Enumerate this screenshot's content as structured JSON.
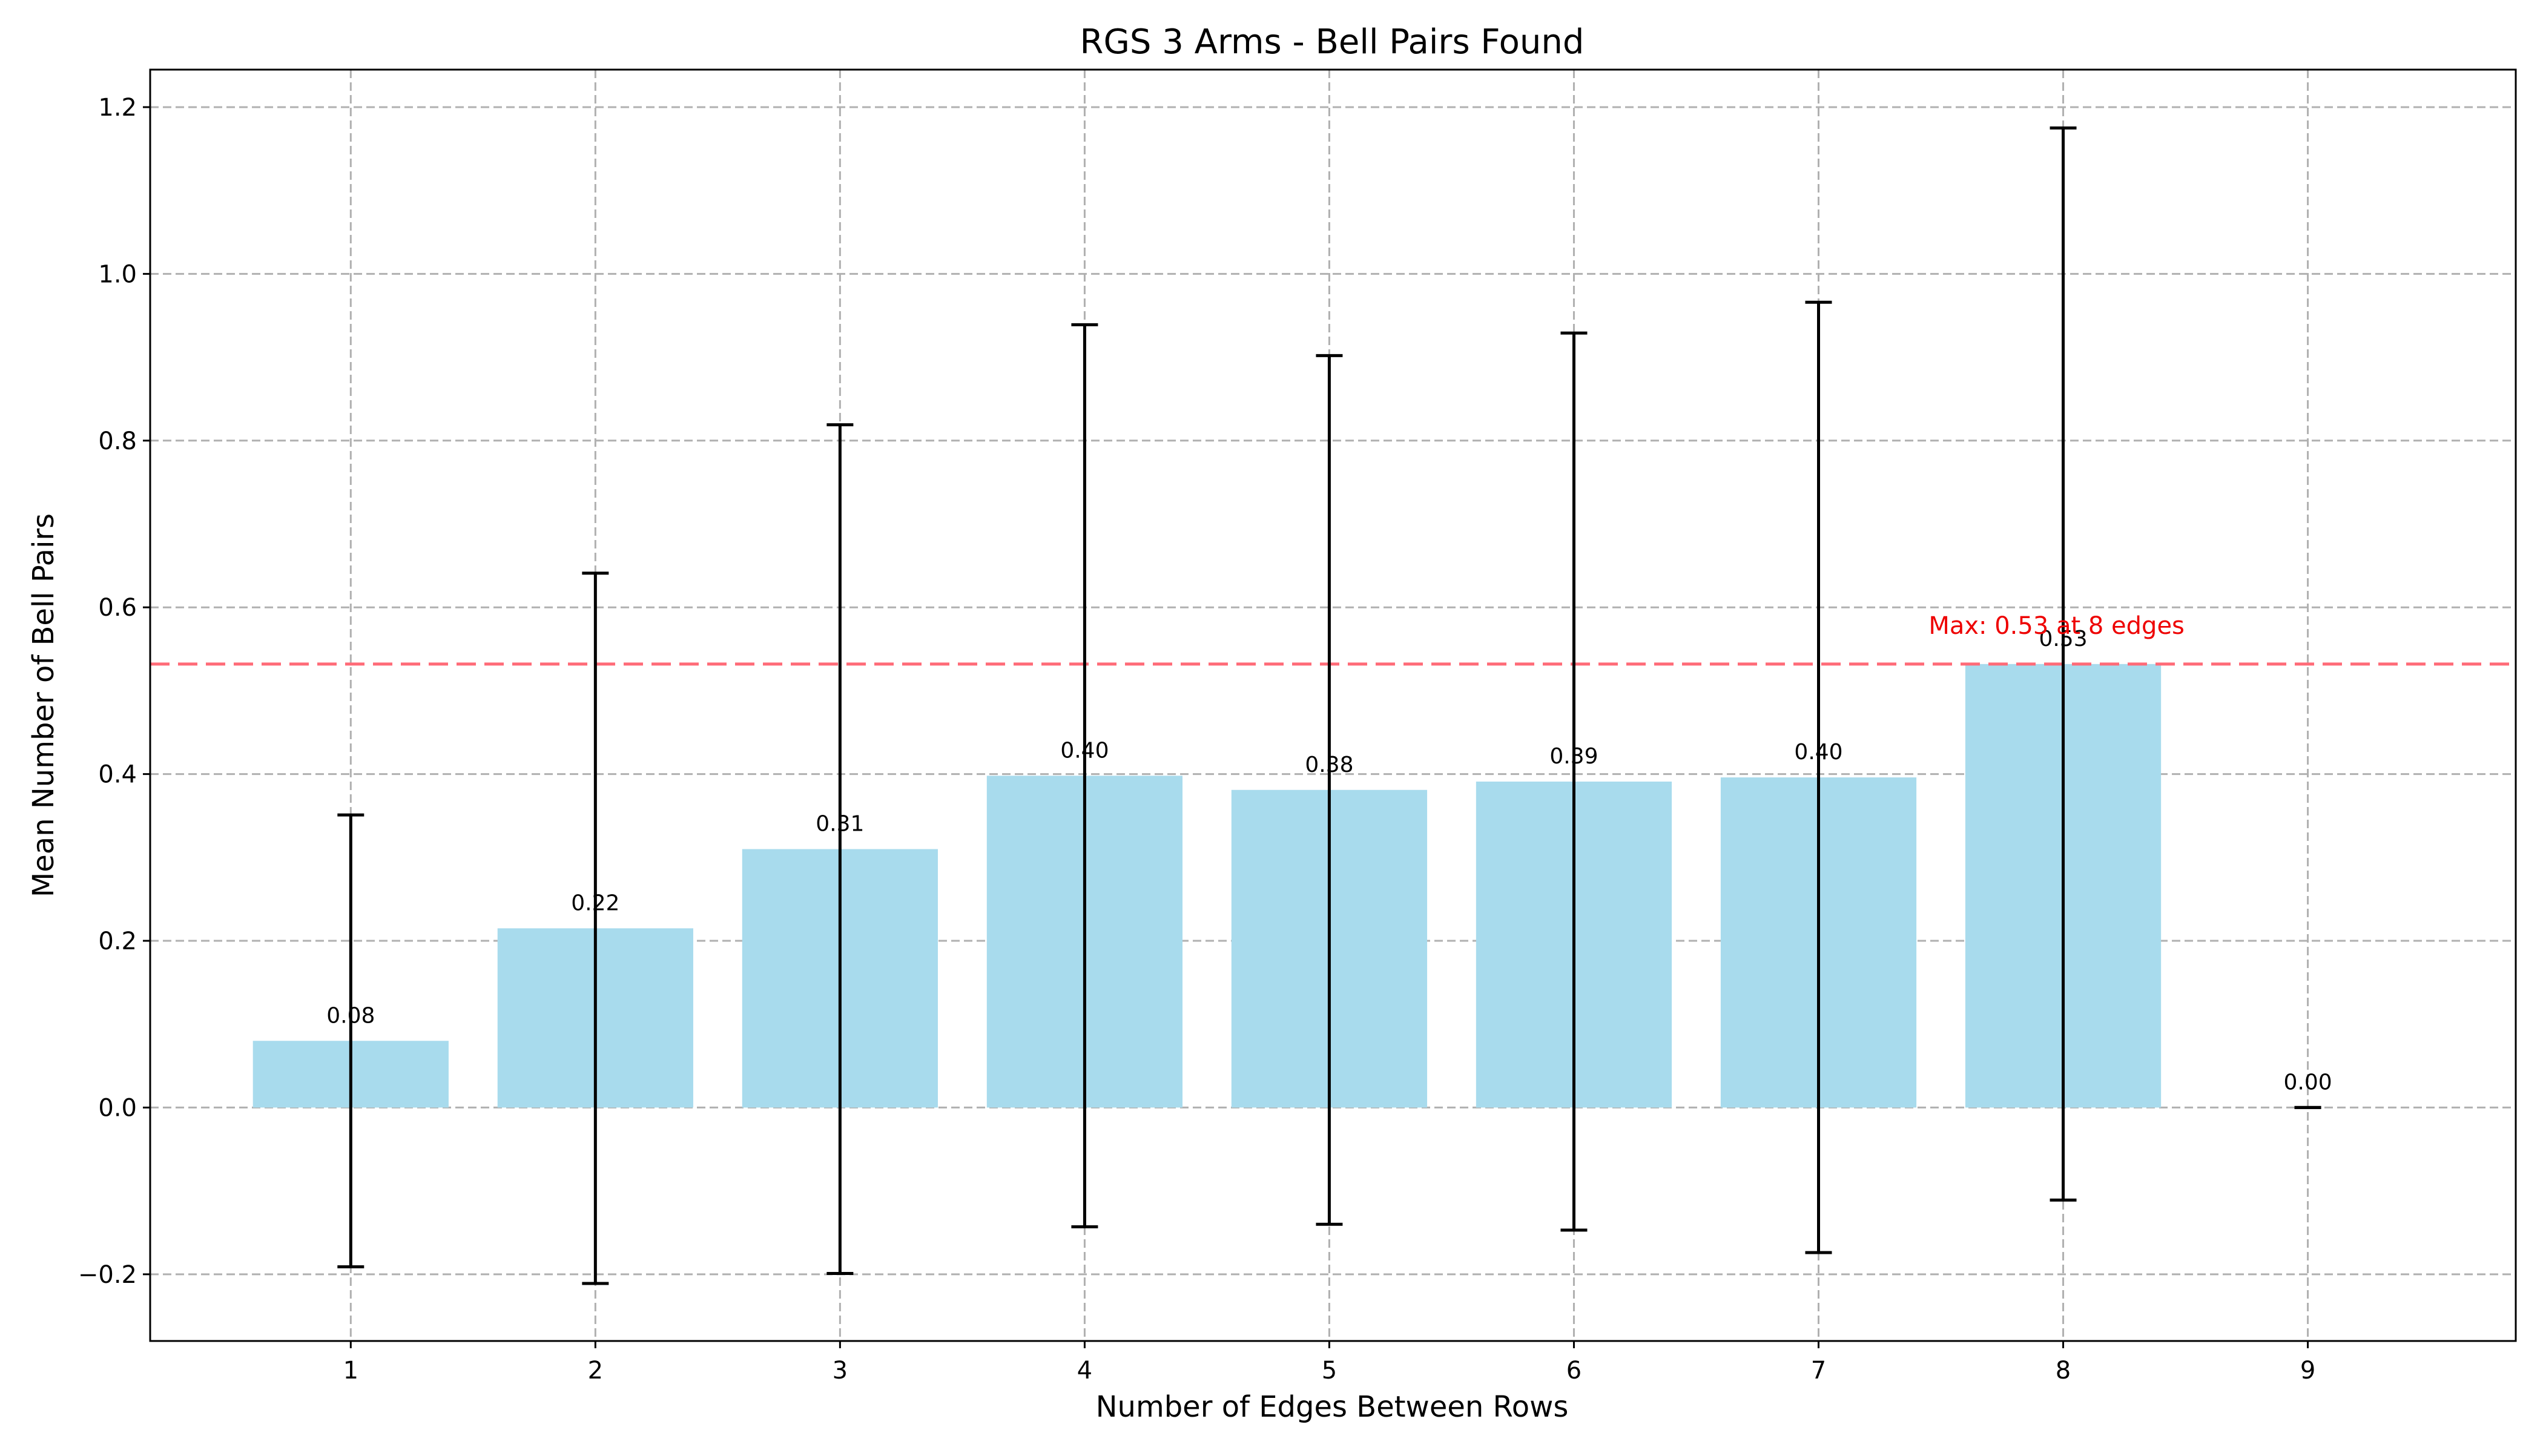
{
  "chart_data": {
    "type": "bar",
    "title": "RGS 3 Arms - Bell Pairs Found",
    "xlabel": "Number of Edges Between Rows",
    "ylabel": "Mean Number of Bell Pairs",
    "categories": [
      1,
      2,
      3,
      4,
      5,
      6,
      7,
      8,
      9
    ],
    "values": [
      0.08,
      0.215,
      0.31,
      0.398,
      0.381,
      0.391,
      0.396,
      0.532,
      0.0
    ],
    "value_labels": [
      "0.08",
      "0.22",
      "0.31",
      "0.40",
      "0.38",
      "0.39",
      "0.40",
      "0.53",
      "0.00"
    ],
    "error": [
      0.271,
      0.426,
      0.509,
      0.541,
      0.521,
      0.538,
      0.57,
      0.643,
      0.0
    ],
    "xlim": [
      0.18,
      9.85
    ],
    "ylim": [
      -0.28,
      1.245
    ],
    "yticks": [
      -0.2,
      0.0,
      0.2,
      0.4,
      0.6,
      0.8,
      1.0,
      1.2
    ],
    "ytick_labels": [
      "−0.2",
      "0.0",
      "0.2",
      "0.4",
      "0.6",
      "0.8",
      "1.0",
      "1.2"
    ],
    "xtick_labels": [
      "1",
      "2",
      "3",
      "4",
      "5",
      "6",
      "7",
      "8",
      "9"
    ],
    "grid": true,
    "bar_color": "#a8dbed",
    "max_line": {
      "value": 0.532,
      "color": "#ff6b78",
      "label": "Max: 0.53 at 8 edges",
      "label_color": "#ee0000"
    }
  }
}
